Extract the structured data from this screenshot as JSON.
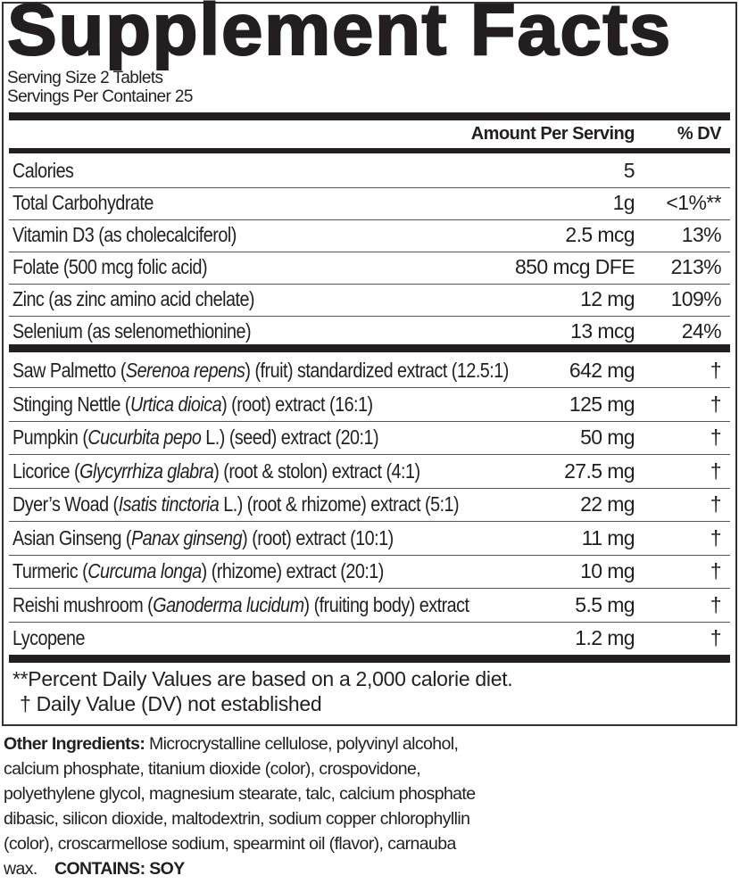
{
  "title": "Supplement Facts",
  "serving_size": "Serving Size 2 Tablets",
  "servings_per_container": "Servings Per Container 25",
  "header": {
    "amount": "Amount Per Serving",
    "dv": "% DV"
  },
  "nutrients": [
    {
      "name": "Calories",
      "amount": "5",
      "dv": ""
    },
    {
      "name": "Total Carbohydrate",
      "amount": "1g",
      "dv": "<1%**"
    },
    {
      "name": "Vitamin D3 (as cholecalciferol)",
      "amount": "2.5 mcg",
      "dv": "13%"
    },
    {
      "name": "Folate (500 mcg folic acid)",
      "amount": "850 mcg DFE",
      "dv": "213%"
    },
    {
      "name": "Zinc (as zinc amino acid chelate)",
      "amount": "12 mg",
      "dv": "109%"
    },
    {
      "name": "Selenium (as selenomethionine)",
      "amount": "13 mcg",
      "dv": "24%"
    }
  ],
  "botanicals": [
    {
      "pre": "Saw Palmetto (",
      "latin": "Serenoa repens",
      "post": ") (fruit) standardized extract (12.5:1)",
      "amount": "642 mg",
      "dv": "†"
    },
    {
      "pre": "Stinging Nettle (",
      "latin": "Urtica dioica",
      "post": ") (root) extract (16:1)",
      "amount": "125 mg",
      "dv": "†"
    },
    {
      "pre": "Pumpkin (",
      "latin": "Cucurbita pepo",
      "post": " L.) (seed) extract (20:1)",
      "amount": "50 mg",
      "dv": "†"
    },
    {
      "pre": "Licorice (",
      "latin": "Glycyrrhiza glabra",
      "post": ") (root & stolon) extract (4:1)",
      "amount": "27.5 mg",
      "dv": "†"
    },
    {
      "pre": "Dyer’s Woad (",
      "latin": "Isatis tinctoria",
      "post": " L.) (root & rhizome) extract (5:1)",
      "amount": "22 mg",
      "dv": "†"
    },
    {
      "pre": "Asian Ginseng (",
      "latin": "Panax ginseng",
      "post": ") (root) extract (10:1)",
      "amount": "11 mg",
      "dv": "†"
    },
    {
      "pre": "Turmeric (",
      "latin": "Curcuma longa",
      "post": ") (rhizome) extract (20:1)",
      "amount": "10 mg",
      "dv": "†"
    },
    {
      "pre": "Reishi mushroom (",
      "latin": "Ganoderma lucidum",
      "post": ") (fruiting body) extract",
      "amount": "5.5 mg",
      "dv": "†"
    },
    {
      "pre": "Lycopene",
      "latin": "",
      "post": "",
      "amount": "1.2 mg",
      "dv": "†"
    }
  ],
  "footnotes": [
    "**Percent Daily Values are based on a 2,000 calorie diet.",
    "† Daily Value (DV) not established"
  ],
  "other_ingredients": {
    "label": "Other Ingredients:",
    "text": " Microcrystalline cellulose, polyvinyl alcohol, calcium phosphate, titanium dioxide (color), crospovidone, polyethylene glycol, magnesium stearate, talc, calcium phosphate dibasic, silicon dioxide, maltodextrin, sodium copper chlorophyllin (color), croscarmellose sodium, spearmint oil (flavor), carnauba wax.",
    "contains": "CONTAINS: SOY"
  }
}
